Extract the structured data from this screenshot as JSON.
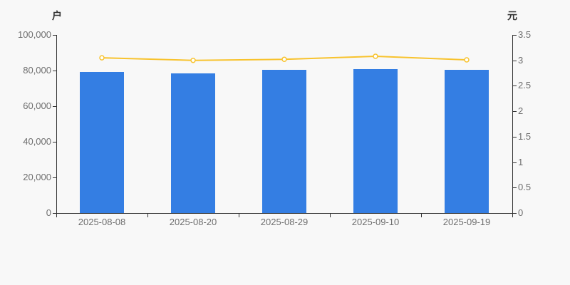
{
  "chart_data": {
    "type": "combo",
    "title": "",
    "xlabel": "",
    "grid": false,
    "legend": false,
    "categories": [
      "2025-08-08",
      "2025-08-20",
      "2025-08-29",
      "2025-09-10",
      "2025-09-19"
    ],
    "series": [
      {
        "id": "bar-series",
        "type": "bar",
        "axis": "left",
        "values": [
          79200,
          78400,
          80500,
          80900,
          80400
        ]
      },
      {
        "id": "line-series",
        "type": "line",
        "axis": "right",
        "values": [
          3.05,
          3.0,
          3.02,
          3.08,
          3.01
        ]
      }
    ],
    "left_axis": {
      "label": "户",
      "min": 0,
      "max": 100000,
      "ticks": [
        "0",
        "20,000",
        "40,000",
        "60,000",
        "80,000",
        "100,000"
      ]
    },
    "right_axis": {
      "label": "元",
      "min": 0,
      "max": 3.5,
      "ticks": [
        "0",
        "0.5",
        "1",
        "1.5",
        "2",
        "2.5",
        "3",
        "3.5"
      ]
    }
  },
  "colors": {
    "background": "#f8f8f8",
    "bar": "#347ee3",
    "line": "#f8c32e",
    "marker_fill": "#ffffff",
    "axis": "#333333",
    "tick_text": "#6e6e6e",
    "unit_text": "#333333"
  }
}
